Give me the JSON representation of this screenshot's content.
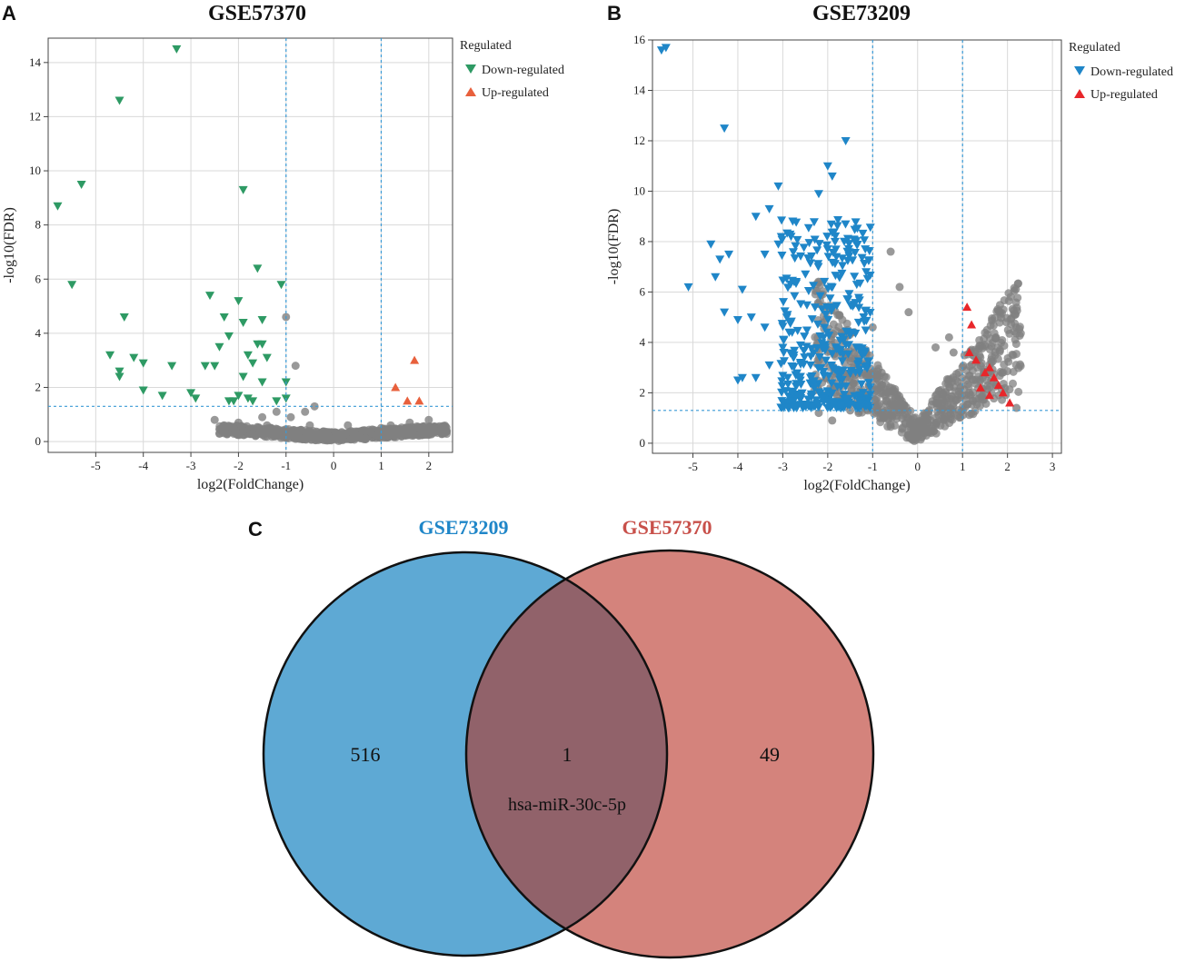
{
  "colors": {
    "gray_point": "#808080",
    "down_A": "#2e9a64",
    "up_A": "#e8603c",
    "down_B": "#1f86c8",
    "up_B": "#e8262a",
    "venn_left": "#5ea9d4",
    "venn_right": "#d4837c",
    "venn_overlap": "#91626a",
    "venn_title_left": "#1f86c8",
    "venn_title_right": "#c8504a",
    "threshold_line": "#3a9ad6",
    "grid": "#d9d9d9"
  },
  "chart_data": [
    {
      "panel": "A",
      "type": "scatter",
      "title": "GSE57370",
      "xlabel": "log2(FoldChange)",
      "ylabel": "-log10(FDR)",
      "xlim": [
        -6,
        2.5
      ],
      "ylim": [
        -0.4,
        14.9
      ],
      "xticks": [
        -5,
        -4,
        -3,
        -2,
        -1,
        0,
        1,
        2
      ],
      "yticks": [
        0,
        2,
        4,
        6,
        8,
        10,
        12,
        14
      ],
      "thresholds": {
        "x": [
          -1,
          1
        ],
        "y": 1.3
      },
      "legend": {
        "title": "Regulated",
        "position": "top-right",
        "entries": [
          "Down-regulated",
          "Up-regulated"
        ]
      },
      "down": [
        [
          -5.8,
          8.7
        ],
        [
          -5.3,
          9.5
        ],
        [
          -5.5,
          5.8
        ],
        [
          -4.5,
          12.6
        ],
        [
          -4.4,
          4.6
        ],
        [
          -4.7,
          3.2
        ],
        [
          -4.5,
          2.6
        ],
        [
          -4.5,
          2.4
        ],
        [
          -4.2,
          3.1
        ],
        [
          -4.0,
          2.9
        ],
        [
          -4.0,
          1.9
        ],
        [
          -3.6,
          1.7
        ],
        [
          -3.3,
          14.5
        ],
        [
          -3.4,
          2.8
        ],
        [
          -3.0,
          1.8
        ],
        [
          -2.9,
          1.6
        ],
        [
          -2.6,
          5.4
        ],
        [
          -2.7,
          2.8
        ],
        [
          -2.5,
          2.8
        ],
        [
          -2.4,
          3.5
        ],
        [
          -2.2,
          3.9
        ],
        [
          -2.3,
          4.6
        ],
        [
          -2.2,
          1.5
        ],
        [
          -2.1,
          1.5
        ],
        [
          -2.0,
          5.2
        ],
        [
          -1.9,
          9.3
        ],
        [
          -1.9,
          4.4
        ],
        [
          -1.9,
          2.4
        ],
        [
          -2.0,
          1.7
        ],
        [
          -1.8,
          1.6
        ],
        [
          -1.8,
          3.2
        ],
        [
          -1.7,
          2.9
        ],
        [
          -1.7,
          1.5
        ],
        [
          -1.6,
          6.4
        ],
        [
          -1.6,
          3.6
        ],
        [
          -1.5,
          4.5
        ],
        [
          -1.5,
          3.6
        ],
        [
          -1.5,
          2.2
        ],
        [
          -1.4,
          3.1
        ],
        [
          -1.2,
          1.5
        ],
        [
          -1.1,
          5.8
        ],
        [
          -1.0,
          2.2
        ],
        [
          -1.0,
          1.6
        ]
      ],
      "up": [
        [
          1.3,
          2.0
        ],
        [
          1.55,
          1.5
        ],
        [
          1.7,
          3.0
        ],
        [
          1.8,
          1.5
        ]
      ],
      "ns": [
        [
          -1.0,
          4.6
        ],
        [
          -0.8,
          2.8
        ],
        [
          -2.5,
          0.8
        ],
        [
          -2.3,
          0.6
        ],
        [
          -2.1,
          0.5
        ],
        [
          -2.0,
          0.7
        ],
        [
          -1.9,
          0.4
        ],
        [
          -1.7,
          0.3
        ],
        [
          -1.5,
          0.9
        ],
        [
          -1.4,
          0.6
        ],
        [
          -1.2,
          1.1
        ],
        [
          -1.1,
          0.3
        ],
        [
          -0.9,
          0.9
        ],
        [
          -0.7,
          0.4
        ],
        [
          -0.5,
          0.6
        ],
        [
          -0.3,
          0.3
        ],
        [
          -0.1,
          0.2
        ],
        [
          0.0,
          0.1
        ],
        [
          0.2,
          0.2
        ],
        [
          0.4,
          0.3
        ],
        [
          0.6,
          0.4
        ],
        [
          0.8,
          0.3
        ],
        [
          1.0,
          0.5
        ],
        [
          1.2,
          0.6
        ],
        [
          1.4,
          0.4
        ],
        [
          1.6,
          0.7
        ],
        [
          1.8,
          0.5
        ],
        [
          2.0,
          0.8
        ],
        [
          2.2,
          0.4
        ],
        [
          2.3,
          0.3
        ],
        [
          -0.6,
          1.1
        ],
        [
          -0.4,
          1.3
        ],
        [
          0.3,
          0.6
        ],
        [
          0.5,
          0.2
        ]
      ]
    },
    {
      "panel": "B",
      "type": "scatter",
      "title": "GSE73209",
      "xlabel": "log2(FoldChange)",
      "ylabel": "-log10(FDR)",
      "xlim": [
        -5.9,
        3.2
      ],
      "ylim": [
        -0.4,
        16.0
      ],
      "xticks": [
        -5,
        -4,
        -3,
        -2,
        -1,
        0,
        1,
        2,
        3
      ],
      "yticks": [
        0,
        2,
        4,
        6,
        8,
        10,
        12,
        14,
        16
      ],
      "thresholds": {
        "x": [
          -1,
          1
        ],
        "y": 1.3
      },
      "legend": {
        "title": "Regulated",
        "position": "top-right",
        "entries": [
          "Down-regulated",
          "Up-regulated"
        ]
      },
      "down": [
        [
          -5.7,
          15.6
        ],
        [
          -5.6,
          15.7
        ],
        [
          -4.3,
          12.5
        ],
        [
          -1.6,
          12.0
        ],
        [
          -1.9,
          10.6
        ],
        [
          -2.0,
          11.0
        ],
        [
          -3.1,
          10.2
        ],
        [
          -2.2,
          9.9
        ],
        [
          -3.3,
          9.3
        ],
        [
          -3.6,
          9.0
        ],
        [
          -4.6,
          7.9
        ],
        [
          -4.4,
          7.3
        ],
        [
          -4.2,
          7.5
        ],
        [
          -5.1,
          6.2
        ],
        [
          -4.5,
          6.6
        ],
        [
          -3.9,
          6.1
        ],
        [
          -4.3,
          5.2
        ],
        [
          -4.0,
          4.9
        ],
        [
          -3.7,
          5.0
        ],
        [
          -3.1,
          7.9
        ],
        [
          -3.4,
          7.5
        ],
        [
          -3.4,
          4.6
        ],
        [
          -4.0,
          2.5
        ],
        [
          -3.9,
          2.6
        ],
        [
          -3.6,
          2.6
        ],
        [
          -3.3,
          3.1
        ],
        [
          -3.0,
          3.8
        ],
        [
          -2.7,
          6.4
        ],
        [
          -2.8,
          2.0
        ],
        [
          -2.6,
          1.8
        ],
        [
          -2.3,
          2.2
        ]
      ],
      "up": [
        [
          1.1,
          5.4
        ],
        [
          1.2,
          4.7
        ],
        [
          1.15,
          3.6
        ],
        [
          1.3,
          3.3
        ],
        [
          1.5,
          2.8
        ],
        [
          1.6,
          3.0
        ],
        [
          1.7,
          2.6
        ],
        [
          1.8,
          2.3
        ],
        [
          1.9,
          2.0
        ],
        [
          2.05,
          1.6
        ],
        [
          1.4,
          2.2
        ],
        [
          1.6,
          1.9
        ]
      ],
      "ns": [
        [
          -1.0,
          4.6
        ],
        [
          -0.8,
          2.8
        ],
        [
          -0.6,
          7.6
        ],
        [
          -0.4,
          6.2
        ],
        [
          -0.2,
          5.2
        ],
        [
          0.4,
          3.8
        ],
        [
          0.7,
          4.2
        ],
        [
          0.8,
          3.6
        ],
        [
          -2.2,
          1.2
        ],
        [
          -1.9,
          0.9
        ],
        [
          -1.5,
          1.3
        ],
        [
          2.2,
          1.4
        ]
      ]
    },
    {
      "panel": "C",
      "type": "venn",
      "sets": [
        {
          "name": "GSE73209",
          "only": "516"
        },
        {
          "name": "GSE57370",
          "only": "49"
        }
      ],
      "intersection": {
        "count": "1",
        "label": "hsa-miR-30c-5p"
      }
    }
  ],
  "panels": {
    "a": {
      "letter": "A"
    },
    "b": {
      "letter": "B"
    },
    "c": {
      "letter": "C"
    }
  }
}
